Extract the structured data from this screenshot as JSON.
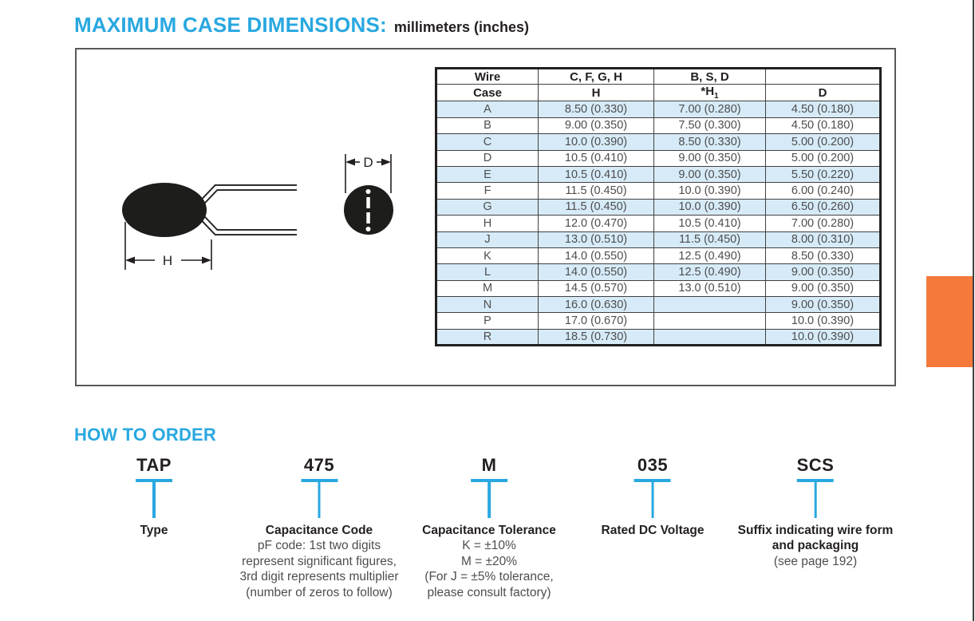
{
  "page": {
    "title": "MAXIMUM CASE DIMENSIONS:",
    "unit_label": "millimeters (inches)"
  },
  "colors": {
    "accent_cyan": "#29A8E0",
    "row_blue": "#D6EBF7",
    "tab_orange": "#F4793B",
    "ink": "#231f20",
    "gray_text": "#4d4d4f"
  },
  "diagram": {
    "h_label": "H",
    "d_label": "D"
  },
  "case_table": {
    "header_row1": [
      "Wire",
      "C, F, G, H",
      "B, S, D",
      ""
    ],
    "header_row2": [
      "Case",
      "H",
      "*H",
      "D"
    ],
    "h1_subscript": "1",
    "rows": [
      {
        "case": "A",
        "h": "8.50 (0.330)",
        "h1": "7.00 (0.280)",
        "d": "4.50 (0.180)"
      },
      {
        "case": "B",
        "h": "9.00 (0.350)",
        "h1": "7.50 (0.300)",
        "d": "4.50 (0.180)"
      },
      {
        "case": "C",
        "h": "10.0 (0.390)",
        "h1": "8.50 (0.330)",
        "d": "5.00 (0.200)"
      },
      {
        "case": "D",
        "h": "10.5 (0.410)",
        "h1": "9.00 (0.350)",
        "d": "5.00 (0.200)"
      },
      {
        "case": "E",
        "h": "10.5 (0.410)",
        "h1": "9.00 (0.350)",
        "d": "5.50 (0.220)"
      },
      {
        "case": "F",
        "h": "11.5 (0.450)",
        "h1": "10.0 (0.390)",
        "d": "6.00 (0.240)"
      },
      {
        "case": "G",
        "h": "11.5 (0.450)",
        "h1": "10.0 (0.390)",
        "d": "6.50 (0.260)"
      },
      {
        "case": "H",
        "h": "12.0 (0.470)",
        "h1": "10.5 (0.410)",
        "d": "7.00 (0.280)"
      },
      {
        "case": "J",
        "h": "13.0 (0.510)",
        "h1": "11.5 (0.450)",
        "d": "8.00 (0.310)"
      },
      {
        "case": "K",
        "h": "14.0 (0.550)",
        "h1": "12.5 (0.490)",
        "d": "8.50 (0.330)"
      },
      {
        "case": "L",
        "h": "14.0 (0.550)",
        "h1": "12.5 (0.490)",
        "d": "9.00 (0.350)"
      },
      {
        "case": "M",
        "h": "14.5 (0.570)",
        "h1": "13.0 (0.510)",
        "d": "9.00 (0.350)"
      },
      {
        "case": "N",
        "h": "16.0 (0.630)",
        "h1": "",
        "d": "9.00 (0.350)"
      },
      {
        "case": "P",
        "h": "17.0 (0.670)",
        "h1": "",
        "d": "10.0 (0.390)"
      },
      {
        "case": "R",
        "h": "18.5 (0.730)",
        "h1": "",
        "d": "10.0 (0.390)"
      }
    ]
  },
  "how_to_order": {
    "heading": "HOW TO ORDER",
    "parts": [
      {
        "code": "TAP",
        "label_lines": [
          "Type"
        ],
        "sub_lines": []
      },
      {
        "code": "475",
        "label_lines": [
          "Capacitance Code"
        ],
        "sub_lines": [
          "pF code: 1st two digits",
          "represent significant figures,",
          "3rd digit represents multiplier",
          "(number of zeros to follow)"
        ]
      },
      {
        "code": "M",
        "label_lines": [
          "Capacitance Tolerance"
        ],
        "sub_lines": [
          "K = ±10%",
          "M = ±20%",
          "(For J = ±5% tolerance,",
          "please consult factory)"
        ]
      },
      {
        "code": "035",
        "label_lines": [
          "Rated DC Voltage"
        ],
        "sub_lines": []
      },
      {
        "code": "SCS",
        "label_lines": [
          "Suffix indicating wire form",
          "and packaging"
        ],
        "sub_lines": [
          "(see page 192)"
        ]
      }
    ]
  }
}
